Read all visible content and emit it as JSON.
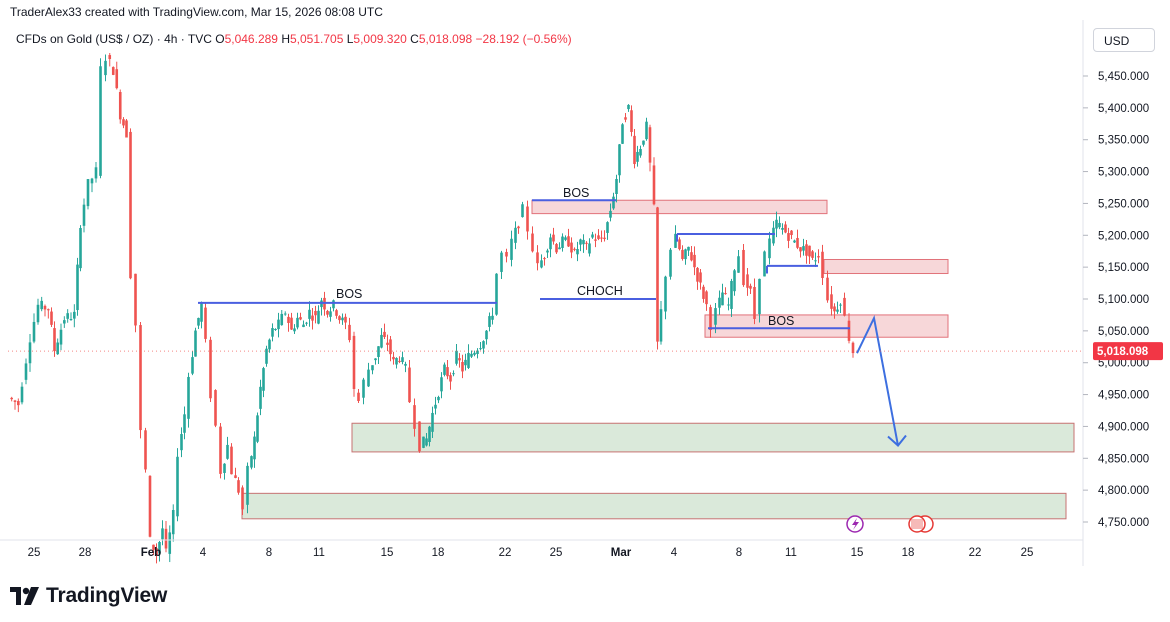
{
  "header": {
    "created_by": "TraderAlex33 created with TradingView.com, Mar 15, 2026 08:08 UTC"
  },
  "symbol": {
    "name": "CFDs on Gold (US$ / OZ)",
    "interval": "4h",
    "source": "TVC",
    "o_label": "O",
    "o": "5,046.289",
    "h_label": "H",
    "h": "5,051.705",
    "l_label": "L",
    "l": "5,009.320",
    "c_label": "C",
    "c": "5,018.098",
    "change": "−28.192 (−0.56%)"
  },
  "currency": "USD",
  "footer": {
    "brand": "TradingView"
  },
  "colors": {
    "up": "#26a69a",
    "down": "#ef5350",
    "line": "#4a5fe0",
    "supply": "#f7d5d8",
    "demand": "#d9e8d9",
    "arrow": "#3d6fe0"
  },
  "chart_data": {
    "type": "candlestick",
    "title": "CFDs on Gold (US$ / OZ) · 4h · TVC",
    "ylabel": "USD",
    "ylim": [
      4720,
      5500
    ],
    "y_ticks": [
      "5,450.000",
      "5,400.000",
      "5,350.000",
      "5,300.000",
      "5,250.000",
      "5,200.000",
      "5,150.000",
      "5,100.000",
      "5,050.000",
      "5,000.000",
      "4,950.000",
      "4,900.000",
      "4,850.000",
      "4,800.000",
      "4,750.000"
    ],
    "x_ticks": [
      "25",
      "28",
      "Feb",
      "4",
      "8",
      "11",
      "15",
      "18",
      "22",
      "25",
      "Mar",
      "4",
      "8",
      "11",
      "15",
      "18",
      "22",
      "25"
    ],
    "last_price": "5,018.098",
    "annotations": [
      {
        "text": "BOS",
        "price": 5115,
        "date": "Feb 11"
      },
      {
        "text": "BOS",
        "price": 5265,
        "date": "Feb 24"
      },
      {
        "text": "CHOCH",
        "price": 5105,
        "date": "Feb 25"
      },
      {
        "text": "BOS",
        "price": 5065,
        "date": "Mar 8"
      }
    ],
    "zones": [
      {
        "type": "supply",
        "from": 5234,
        "to": 5255
      },
      {
        "type": "supply",
        "from": 5140,
        "to": 5162
      },
      {
        "type": "supply",
        "from": 5040,
        "to": 5075
      },
      {
        "type": "demand",
        "from": 4860,
        "to": 4905
      },
      {
        "type": "demand",
        "from": 4755,
        "to": 4795
      }
    ],
    "levels": [
      {
        "label": "BOS",
        "price": 5092
      },
      {
        "label": "BOS",
        "price": 5253
      },
      {
        "label": "CHOCH",
        "price": 5100
      },
      {
        "label": "BOS",
        "price": 5053
      }
    ],
    "projection": [
      5015,
      5070,
      4870
    ],
    "events": [
      "lightning",
      "us-flag"
    ]
  }
}
